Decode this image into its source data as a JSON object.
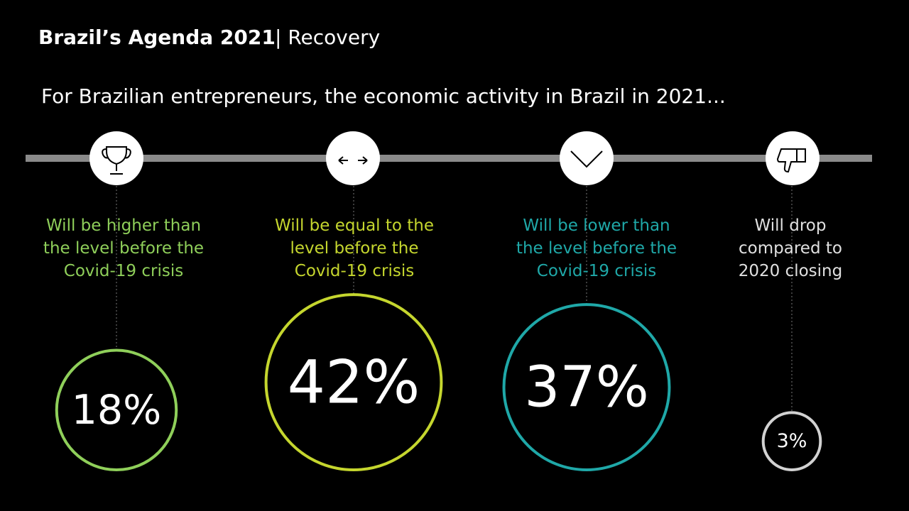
{
  "chart_data": {
    "type": "bubble",
    "title": "Brazil’s Agenda 2021",
    "section": "| Recovery",
    "subtitle": "For Brazilian entrepreneurs, the economic activity in Brazil in 2021...",
    "categories": [
      "Will be higher than the level before the Covid-19 crisis",
      "Will be equal to the level before the Covid-19 crisis",
      "Will be lower than the level before the Covid-19 crisis",
      "Will drop compared to 2020 closing"
    ],
    "values": [
      18,
      42,
      37,
      3
    ],
    "value_labels": [
      "18%",
      "42%",
      "37%",
      "3%"
    ],
    "colors": [
      "#8fcf5a",
      "#c5d62e",
      "#1fa8a8",
      "#d2d2d2"
    ]
  }
}
